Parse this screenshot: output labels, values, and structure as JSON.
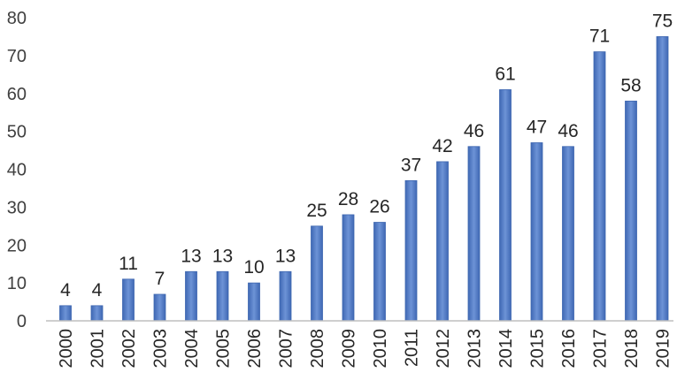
{
  "chart_data": {
    "type": "bar",
    "title": "",
    "xlabel": "",
    "ylabel": "",
    "categories": [
      "2000",
      "2001",
      "2002",
      "2003",
      "2004",
      "2005",
      "2006",
      "2007",
      "2008",
      "2009",
      "2010",
      "2011",
      "2012",
      "2013",
      "2014",
      "2015",
      "2016",
      "2017",
      "2018",
      "2019"
    ],
    "values": [
      4,
      4,
      11,
      7,
      13,
      13,
      10,
      13,
      25,
      28,
      26,
      37,
      42,
      46,
      61,
      47,
      46,
      71,
      58,
      75
    ],
    "ylim": [
      0,
      80
    ],
    "yticks": [
      0,
      10,
      20,
      30,
      40,
      50,
      60,
      70,
      80
    ],
    "grid": false,
    "legend": "none",
    "data_labels": true,
    "bar_color": "#4472c4"
  }
}
